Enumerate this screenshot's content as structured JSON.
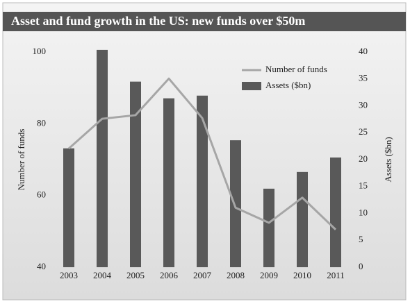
{
  "chart_data": {
    "type": "combo",
    "title": "Asset and fund growth in the US: new funds over $50m",
    "categories": [
      "2003",
      "2004",
      "2005",
      "2006",
      "2007",
      "2008",
      "2009",
      "2010",
      "2011"
    ],
    "series": [
      {
        "name": "Number of funds",
        "type": "line",
        "color": "#a6a6a6",
        "values": [
          73.1,
          81.4,
          82.4,
          92.6,
          81.6,
          56.6,
          52.4,
          59.4,
          50.5
        ]
      },
      {
        "name": "Assets ($bn)",
        "type": "bar",
        "axis": "y2",
        "color": "#595959",
        "values": [
          22.1,
          40.4,
          34.5,
          31.4,
          31.9,
          23.6,
          14.6,
          17.7,
          20.4
        ]
      }
    ],
    "ylabel": "Number of funds",
    "y2label": "Assets ($bn)",
    "ylim": [
      40,
      100
    ],
    "yticks": [
      40,
      60,
      80,
      100
    ],
    "y2lim": [
      0,
      40
    ],
    "y2ticks": [
      0,
      5,
      10,
      15,
      20,
      25,
      30,
      35,
      40
    ],
    "grid": false,
    "legend": "top-right"
  }
}
